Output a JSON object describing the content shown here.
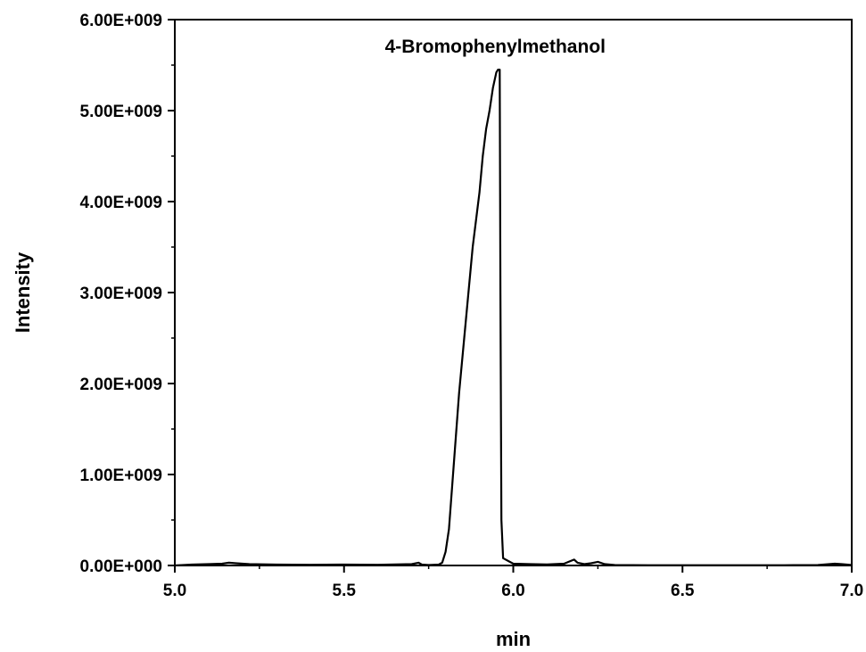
{
  "chart_data": {
    "type": "line",
    "title": "",
    "xlabel": "min",
    "ylabel": "Intensity",
    "xlim": [
      5.0,
      7.0
    ],
    "ylim": [
      0,
      6000000000
    ],
    "grid": false,
    "x_ticks": [
      "5.0",
      "5.5",
      "6.0",
      "6.5",
      "7.0"
    ],
    "y_ticks": [
      "0.00E+000",
      "1.00E+009",
      "2.00E+009",
      "3.00E+009",
      "4.00E+009",
      "5.00E+009",
      "6.00E+009"
    ],
    "annotations": [
      {
        "text": "4-Bromophenylmethanol",
        "x": 5.96,
        "y": 5450000000
      }
    ],
    "series": [
      {
        "color": "#000000",
        "x": [
          5.0,
          5.05,
          5.1,
          5.14,
          5.16,
          5.18,
          5.22,
          5.3,
          5.4,
          5.5,
          5.6,
          5.7,
          5.72,
          5.73,
          5.75,
          5.78,
          5.79,
          5.8,
          5.81,
          5.82,
          5.83,
          5.84,
          5.86,
          5.88,
          5.9,
          5.91,
          5.92,
          5.93,
          5.94,
          5.95,
          5.955,
          5.96,
          5.962,
          5.965,
          5.97,
          6.0,
          6.05,
          6.1,
          6.15,
          6.17,
          6.18,
          6.19,
          6.21,
          6.23,
          6.25,
          6.27,
          6.3,
          6.4,
          6.5,
          6.6,
          6.7,
          6.8,
          6.9,
          6.95,
          6.97,
          7.0
        ],
        "y": [
          0,
          10000000,
          15000000,
          20000000,
          30000000,
          25000000,
          15000000,
          10000000,
          8000000,
          10000000,
          8000000,
          15000000,
          30000000,
          10000000,
          5000000,
          10000000,
          30000000,
          150000000,
          400000000,
          900000000,
          1400000000,
          1900000000,
          2700000000,
          3500000000,
          4100000000,
          4500000000,
          4800000000,
          5000000000,
          5250000000,
          5420000000,
          5450000000,
          5450000000,
          3000000000,
          500000000,
          80000000,
          20000000,
          15000000,
          12000000,
          20000000,
          50000000,
          65000000,
          30000000,
          15000000,
          25000000,
          40000000,
          15000000,
          5000000,
          3000000,
          3000000,
          3000000,
          3000000,
          3000000,
          5000000,
          20000000,
          15000000,
          5000000
        ]
      }
    ]
  }
}
